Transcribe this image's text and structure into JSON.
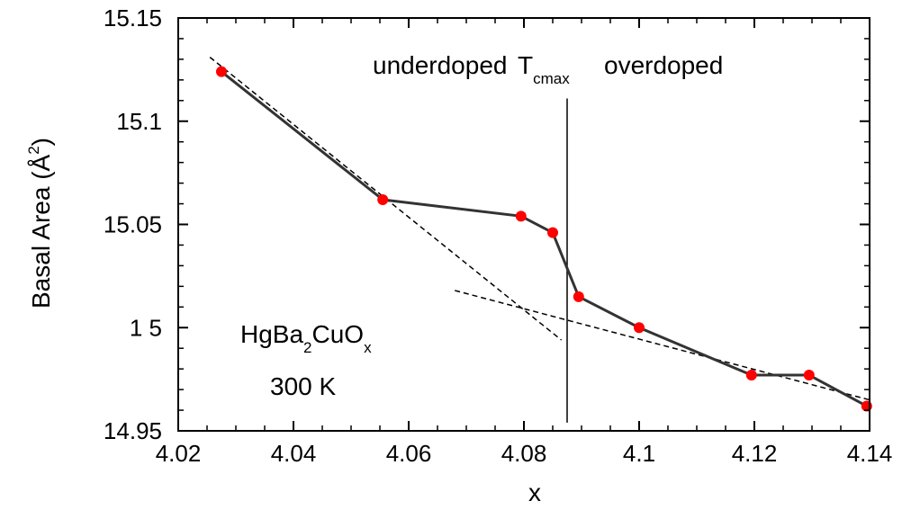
{
  "chart_data": {
    "type": "line",
    "xlabel": "x",
    "ylabel_main": "Basal Area (Å",
    "ylabel_sup": "2",
    "ylabel_end": ")",
    "xlim": [
      4.02,
      4.14
    ],
    "ylim": [
      14.95,
      15.15
    ],
    "x_ticks": [
      4.02,
      4.04,
      4.06,
      4.08,
      4.1,
      4.12,
      4.14
    ],
    "x_tick_labels": [
      "4.02",
      "4.04",
      "4.06",
      "4.08",
      "4.1",
      "4.12",
      "4.14"
    ],
    "y_ticks": [
      14.95,
      15.0,
      15.05,
      15.1,
      15.15
    ],
    "y_tick_labels": [
      "14.95",
      "1 5",
      "15.05",
      "15.1",
      "15.15"
    ],
    "grid": false,
    "series": [
      {
        "marker_color": "#ff0000",
        "line_color": "#333333",
        "x": [
          4.0275,
          4.0555,
          4.0795,
          4.085,
          4.0895,
          4.1,
          4.1195,
          4.1295,
          4.1395
        ],
        "y": [
          15.124,
          15.062,
          15.054,
          15.046,
          15.015,
          15.0,
          14.977,
          14.977,
          14.962
        ]
      }
    ],
    "fit_lines": [
      {
        "x": [
          4.0255,
          4.0865
        ],
        "y": [
          15.131,
          14.994
        ]
      },
      {
        "x": [
          4.068,
          4.14
        ],
        "y": [
          15.018,
          14.965
        ]
      }
    ],
    "vertical_line": {
      "x": 4.0875,
      "y": [
        14.954,
        15.111
      ]
    },
    "annotations": {
      "underdoped": "underdoped",
      "tc_main": "T",
      "tc_sub": "cmax",
      "overdoped": "overdoped",
      "compound_a": "HgBa",
      "compound_sub2": "2",
      "compound_b": "CuO",
      "compound_subx": "x",
      "temperature": "300  K"
    }
  }
}
